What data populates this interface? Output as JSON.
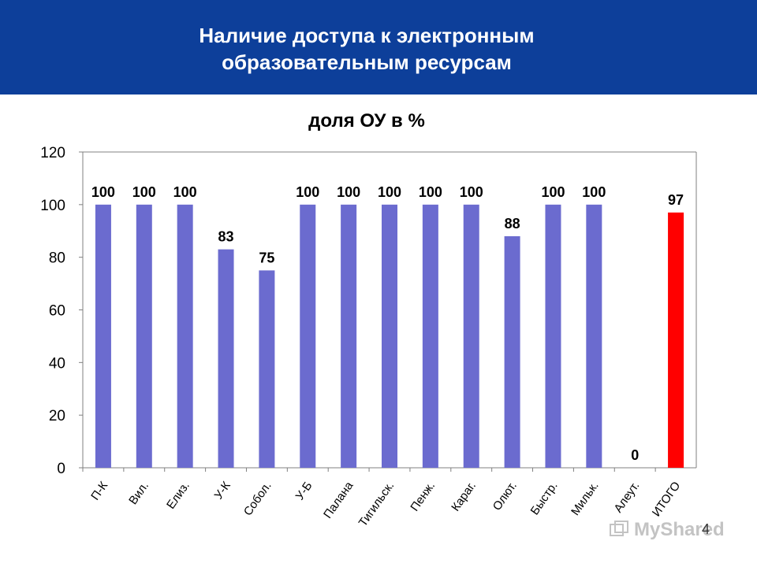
{
  "header": {
    "title_line1": "Наличие доступа к электронным",
    "title_line2": "образовательным ресурсам"
  },
  "page_number": "4",
  "watermark": {
    "text": "MyShared"
  },
  "colors": {
    "header_bg": "#0d3f9a",
    "bar": "#6b6bcf",
    "highlight_bar": "#ff0000",
    "axis": "#808080"
  },
  "chart_data": {
    "type": "bar",
    "title": "доля ОУ в %",
    "xlabel": "",
    "ylabel": "",
    "ylim": [
      0,
      120
    ],
    "yticks": [
      0,
      20,
      40,
      60,
      80,
      100,
      120
    ],
    "grid": false,
    "legend": "none",
    "categories": [
      "П-К",
      "Вил.",
      "Елиз.",
      "У-К",
      "Собол.",
      "У-Б",
      "Палана",
      "Тигильск.",
      "Пенж.",
      "Караг.",
      "Олют.",
      "Быстр.",
      "Мильк.",
      "Алеут.",
      "ИТОГО"
    ],
    "values": [
      100,
      100,
      100,
      83,
      75,
      100,
      100,
      100,
      100,
      100,
      88,
      100,
      100,
      0,
      97
    ],
    "data_labels": [
      "100",
      "100",
      "100",
      "83",
      "75",
      "100",
      "100",
      "100",
      "100",
      "100",
      "88",
      "100",
      "100",
      "0",
      "97"
    ],
    "highlight_category": "ИТОГО"
  }
}
